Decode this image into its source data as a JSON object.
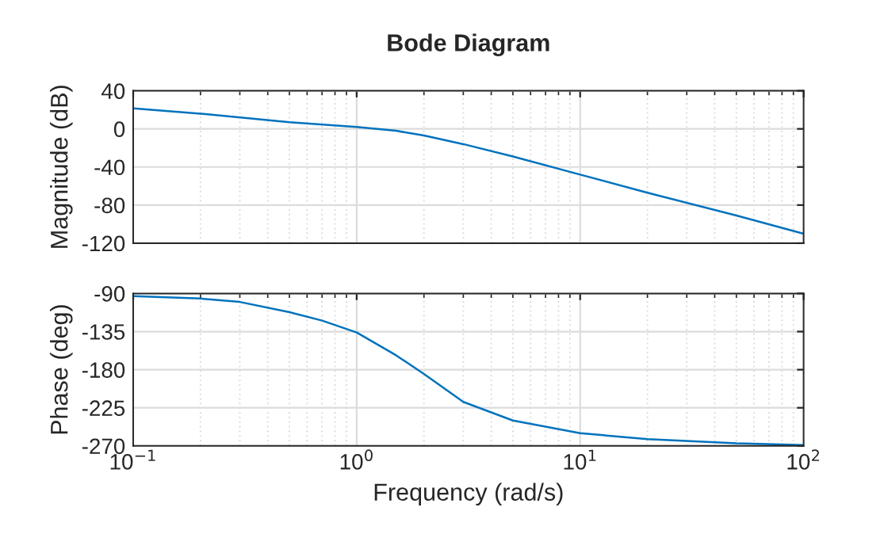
{
  "chart_data": [
    {
      "type": "line",
      "title": "Bode Diagram",
      "ylabel": "Magnitude (dB)",
      "log": "x",
      "grid": true,
      "tick_labels": "y",
      "x": [
        0.1,
        0.2,
        0.5,
        1,
        1.5,
        2,
        3,
        5,
        10,
        20,
        50,
        100
      ],
      "series": [
        {
          "color": "#0072bd",
          "values": [
            21.5,
            16,
            7,
            2,
            -2,
            -7,
            -16,
            -29,
            -48,
            -67,
            -91,
            -110
          ]
        }
      ],
      "xlim": [
        0.1,
        100
      ],
      "ylim": [
        -120,
        40
      ],
      "yticks": [
        -120,
        -80,
        -40,
        0,
        40
      ]
    },
    {
      "type": "line",
      "xlabel": "Frequency (rad/s)",
      "ylabel": "Phase (deg)",
      "log": "x",
      "grid": true,
      "x": [
        0.1,
        0.2,
        0.3,
        0.5,
        0.7,
        1,
        1.5,
        2,
        3,
        5,
        10,
        20,
        50,
        100
      ],
      "series": [
        {
          "color": "#0072bd",
          "values": [
            -93,
            -96,
            -100,
            -112,
            -122,
            -136,
            -163,
            -185,
            -218,
            -240,
            -255,
            -262,
            -267,
            -269
          ]
        }
      ],
      "xlim": [
        0.1,
        100
      ],
      "ylim": [
        -270,
        -90
      ],
      "yticks": [
        -270,
        -225,
        -180,
        -135,
        -90
      ],
      "xticks": [
        {
          "value": 0.1,
          "label": "10$^{−1}$"
        },
        {
          "value": 1,
          "label": "10$^{0}$"
        },
        {
          "value": 10,
          "label": "10$^{1}$"
        },
        {
          "value": 100,
          "label": "10$^{2}$"
        }
      ]
    }
  ]
}
